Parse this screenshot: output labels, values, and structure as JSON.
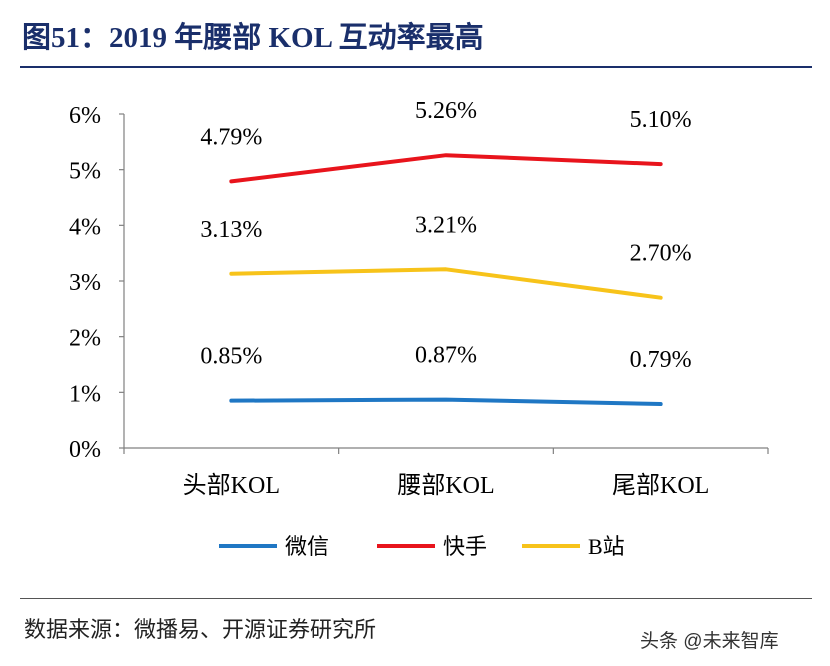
{
  "title": "图51：2019 年腰部 KOL 互动率最高",
  "source": "数据来源：微播易、开源证券研究所",
  "watermark": "头条 @未来智库",
  "chart_data": {
    "type": "line",
    "title": "",
    "xlabel": "",
    "ylabel": "",
    "categories": [
      "头部KOL",
      "腰部KOL",
      "尾部KOL"
    ],
    "ylim": [
      0,
      6
    ],
    "yticks": [
      "0%",
      "1%",
      "2%",
      "3%",
      "4%",
      "5%",
      "6%"
    ],
    "legend_position": "bottom",
    "series": [
      {
        "name": "微信",
        "color": "#1f77c4",
        "values": [
          0.85,
          0.87,
          0.79
        ],
        "labels": [
          "0.85%",
          "0.87%",
          "0.79%"
        ]
      },
      {
        "name": "快手",
        "color": "#e8141c",
        "values": [
          4.79,
          5.26,
          5.1
        ],
        "labels": [
          "4.79%",
          "5.26%",
          "5.10%"
        ]
      },
      {
        "name": "B站",
        "color": "#f7c31a",
        "values": [
          3.13,
          3.21,
          2.7
        ],
        "labels": [
          "3.13%",
          "3.21%",
          "2.70%"
        ]
      }
    ]
  }
}
